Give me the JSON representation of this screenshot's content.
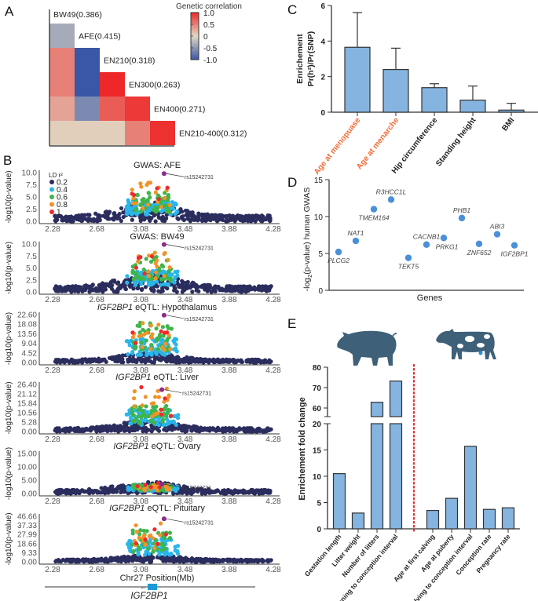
{
  "colors": {
    "bar": "#85b4e0",
    "bar_stroke": "#333333",
    "highlight_label": "#f26b36",
    "ld_0.2": "#2b2d5e",
    "ld_0.4": "#29b6ea",
    "ld_0.6": "#3fb54a",
    "ld_0.8": "#f0932b",
    "ld_1": "#ee2a2a",
    "lead_snp": "#8b2a8f",
    "gene_box": "#1a9ad6",
    "divider": "#ee2a2a",
    "animal": "#3f6079",
    "heat_neg": "#3a56a6",
    "heat_mid": "#e0d8c4",
    "heat_pos": "#ee2828"
  },
  "panels": {
    "a": "A",
    "b": "B",
    "c": "C",
    "d": "D",
    "e": "E"
  },
  "chart_data": [
    {
      "type": "heatmap",
      "panel": "A",
      "traits": [
        "BW49(0.386)",
        "AFE(0.415)",
        "EN210(0.318)",
        "EN300(0.263)",
        "EN400(0.271)",
        "EN210-400(0.312)"
      ],
      "lower_triangle": [
        [
          -0.35
        ],
        [
          0.5,
          -1.0
        ],
        [
          0.5,
          -1.0,
          1.0
        ],
        [
          0.3,
          -0.6,
          0.7,
          0.9
        ],
        [
          0.05,
          0.05,
          0.05,
          0.5,
          0.95
        ]
      ],
      "legend": {
        "title": "Genetic correlation",
        "ticks": [
          "1.0",
          "0.5",
          "0",
          "-0.5",
          "-1.0"
        ],
        "range": [
          -1,
          1
        ]
      }
    },
    {
      "type": "scatter",
      "panel": "B",
      "ylabel": "-log10(p-value)",
      "xlabel": "Chr27 Position(Mb)",
      "x_ticks": [
        "2.28",
        "2.68",
        "3.08",
        "3.48",
        "3.88",
        "4.28"
      ],
      "xlim": [
        2.28,
        4.28
      ],
      "lead_snp": "rs15242731",
      "ld_legend": {
        "title": "LD r²",
        "levels": [
          "0.2",
          "0.4",
          "0.6",
          "0.8",
          "1"
        ]
      },
      "subplots": [
        {
          "title_gene": "",
          "title_rest": "GWAS: AFE",
          "y_ticks": [
            "0.0",
            "2.5",
            "5.0",
            "7.5",
            "10.0"
          ],
          "ylim": [
            0,
            10
          ],
          "lead": {
            "x": 3.29,
            "y": 9.8
          }
        },
        {
          "title_gene": "",
          "title_rest": "GWAS: BW49",
          "y_ticks": [
            "0.0",
            "2.5",
            "5.0",
            "7.5",
            "10.0"
          ],
          "ylim": [
            0,
            10
          ],
          "lead": {
            "x": 3.29,
            "y": 9.9
          }
        },
        {
          "title_gene": "IGF2BP1",
          "title_rest": " eQTL: Hypothalamus",
          "y_ticks": [
            "0.00",
            "4.52",
            "9.04",
            "13.56",
            "18.08",
            "22.60"
          ],
          "ylim": [
            0,
            22.6
          ],
          "lead": {
            "x": 3.29,
            "y": 22.3
          }
        },
        {
          "title_gene": "IGF2BP1",
          "title_rest": " eQTL: Liver",
          "y_ticks": [
            "0.00",
            "5.28",
            "10.56",
            "15.84",
            "21.12",
            "26.40"
          ],
          "ylim": [
            0,
            26.4
          ],
          "lead": {
            "x": 3.27,
            "y": 23.5
          }
        },
        {
          "title_gene": "IGF2BP1",
          "title_rest": " eQTL: Ovary",
          "y_ticks": [
            "0.00",
            "5.00",
            "10.00",
            "15.00"
          ],
          "ylim": [
            0,
            15
          ],
          "lead": {
            "x": 3.27,
            "y": 3.5
          }
        },
        {
          "title_gene": "IGF2BP1",
          "title_rest": " eQTL: Pituitary",
          "y_ticks": [
            "0.00",
            "9.33",
            "18.66",
            "27.99",
            "37.33",
            "46.66"
          ],
          "ylim": [
            0,
            46.66
          ],
          "lead": {
            "x": 3.29,
            "y": 44
          }
        }
      ],
      "gene_track": {
        "gene": "IGF2BP1",
        "strand": "-"
      }
    },
    {
      "type": "bar",
      "panel": "C",
      "ylabel_line1": "Enrichement",
      "ylabel_line2": "Pr(h²)/Pr(SNP)",
      "categories": [
        "Age at menopuase",
        "Age at menarche",
        "Hip circumference",
        "Standing height",
        "BMI"
      ],
      "highlighted": [
        true,
        true,
        false,
        false,
        false
      ],
      "values": [
        3.65,
        2.4,
        1.38,
        0.68,
        0.12
      ],
      "error_upper": [
        5.6,
        3.6,
        1.6,
        1.47,
        0.5
      ],
      "y_ticks": [
        "0",
        "2",
        "4",
        "6"
      ],
      "ylim": [
        0,
        6
      ]
    },
    {
      "type": "scatter",
      "panel": "D",
      "xlabel": "Genes",
      "ylabel_prefix": "-log",
      "ylabel_sub": "2",
      "ylabel_suffix": "(p-value) human GWAS",
      "points": [
        {
          "gene": "PLCG2",
          "y": 5.2
        },
        {
          "gene": "NAT1",
          "y": 6.7
        },
        {
          "gene": "TMEM164",
          "y": 11.0
        },
        {
          "gene": "R3HCC1L",
          "y": 12.3
        },
        {
          "gene": "TEKT5",
          "y": 4.4
        },
        {
          "gene": "CACNB1",
          "y": 6.2
        },
        {
          "gene": "PRKG1",
          "y": 7.1
        },
        {
          "gene": "PHB1",
          "y": 9.8
        },
        {
          "gene": "ZNF652",
          "y": 6.3
        },
        {
          "gene": "ABI3",
          "y": 7.6
        },
        {
          "gene": "IGF2BP1",
          "y": 6.1
        }
      ],
      "y_ticks": [
        "0",
        "5",
        "10",
        "15"
      ],
      "ylim": [
        0,
        15
      ]
    },
    {
      "type": "bar",
      "panel": "E",
      "ylabel": "Enrichement fold change",
      "groups": [
        {
          "animal": "pig-icon",
          "categories": [
            "Gestation length",
            "Litter weight",
            "Number of litters",
            "Weaning to conception interval"
          ],
          "values": [
            10.5,
            3.0,
            62.8,
            73.2
          ]
        },
        {
          "animal": "cow-icon",
          "categories": [
            "Age at first calving",
            "Age at puberty",
            "Calving to conception interval",
            "Conception rate",
            "Pregnancy rate"
          ],
          "values": [
            3.5,
            5.8,
            15.7,
            3.7,
            4.0
          ]
        }
      ],
      "y_ticks_lower": [
        "0",
        "5",
        "10",
        "15",
        "20"
      ],
      "y_ticks_upper": [
        "60",
        "70",
        "80"
      ],
      "y_axis_break": [
        20,
        55
      ],
      "ylim": [
        0,
        80
      ]
    }
  ]
}
